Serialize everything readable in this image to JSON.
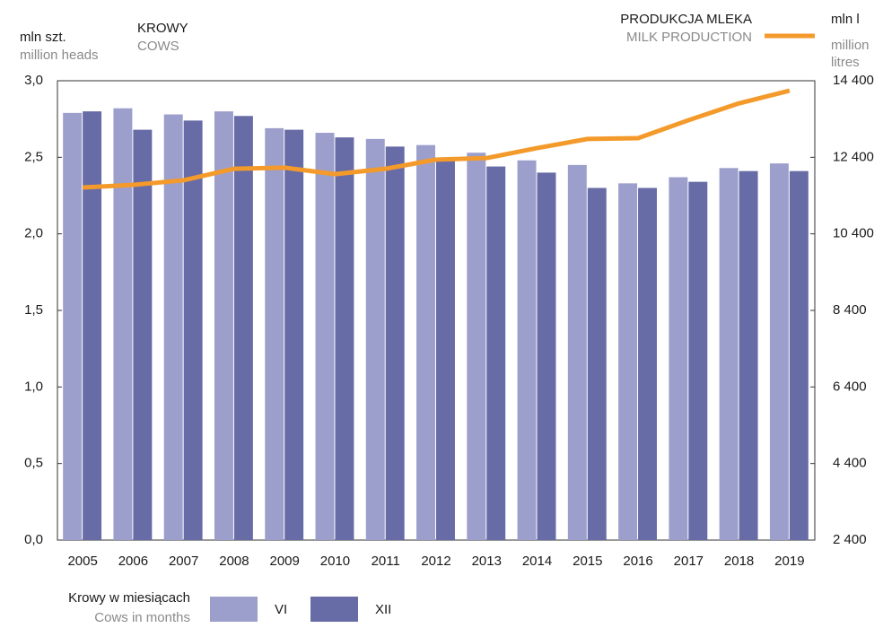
{
  "chart_data": {
    "type": "bar",
    "left_unit": "mln szt.",
    "left_unit_en": "million heads",
    "left_title": "KROWY",
    "left_title_en": "COWS",
    "right_title": "PRODUKCJA MLEKA",
    "right_title_en": "MILK PRODUCTION",
    "right_unit": "mln l",
    "right_unit_en_1": "million",
    "right_unit_en_2": "litres",
    "legend_title": "Krowy w miesiącach",
    "legend_title_en": "Cows in months",
    "categories": [
      "2005",
      "2006",
      "2007",
      "2008",
      "2009",
      "2010",
      "2011",
      "2012",
      "2013",
      "2014",
      "2015",
      "2016",
      "2017",
      "2018",
      "2019"
    ],
    "series": [
      {
        "name": "VI",
        "color": "#9c9fcb",
        "values": [
          2.79,
          2.82,
          2.78,
          2.8,
          2.69,
          2.66,
          2.62,
          2.58,
          2.53,
          2.48,
          2.45,
          2.33,
          2.37,
          2.43,
          2.46
        ]
      },
      {
        "name": "XII",
        "color": "#676ba6",
        "values": [
          2.8,
          2.68,
          2.74,
          2.77,
          2.68,
          2.63,
          2.57,
          2.49,
          2.44,
          2.4,
          2.3,
          2.3,
          2.34,
          2.41,
          2.41
        ]
      },
      {
        "name": "PRODUKCJA MLEKA",
        "type": "line",
        "axis": "y2",
        "color": "#f39a2b",
        "values": [
          11610,
          11680,
          11800,
          12100,
          12130,
          11960,
          12100,
          12340,
          12380,
          12640,
          12880,
          12900,
          13370,
          13810,
          14140
        ]
      }
    ],
    "ylim": [
      0,
      3
    ],
    "yticks": [
      {
        "value": 0,
        "label": "0,0"
      },
      {
        "value": 0.5,
        "label": "0,5"
      },
      {
        "value": 1,
        "label": "1,0"
      },
      {
        "value": 1.5,
        "label": "1,5"
      },
      {
        "value": 2,
        "label": "2,0"
      },
      {
        "value": 2.5,
        "label": "2,5"
      },
      {
        "value": 3,
        "label": "3,0"
      }
    ],
    "y2lim": [
      2400,
      14400
    ],
    "y2ticks": [
      {
        "value": 2400,
        "label": "2 400"
      },
      {
        "value": 4400,
        "label": "4 400"
      },
      {
        "value": 6400,
        "label": "6 400"
      },
      {
        "value": 8400,
        "label": "8 400"
      },
      {
        "value": 10400,
        "label": "10 400"
      },
      {
        "value": 12400,
        "label": "12 400"
      },
      {
        "value": 14400,
        "label": "14 400"
      }
    ]
  }
}
